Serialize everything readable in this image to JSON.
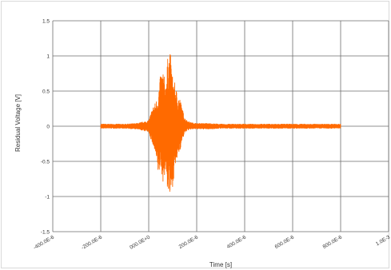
{
  "chart_data": {
    "type": "line",
    "title": "",
    "xlabel": "Time [s]",
    "ylabel": "Residual Voltage [V]",
    "xlim": [
      -0.0004,
      0.001
    ],
    "ylim": [
      -1.5,
      1.5
    ],
    "x_ticks": [
      -0.0004,
      -0.0002,
      0.0,
      0.0002,
      0.0004,
      0.0006,
      0.0008,
      0.001
    ],
    "x_tick_labels": [
      "-400.0E-6",
      "-200.0E-6",
      "000.0E+0",
      "200.0E-6",
      "400.0E-6",
      "600.0E-6",
      "800.0E-6",
      "1.0E-3"
    ],
    "y_ticks": [
      1.5,
      1,
      0.5,
      0,
      -0.5,
      -1,
      -1.5
    ],
    "y_tick_labels": [
      "1.5",
      "1",
      "0.5",
      "0",
      "-0.5",
      "-1",
      "-1.5"
    ],
    "grid": true,
    "series": [
      {
        "color": "#ff6a00",
        "x": [
          -0.0002,
          -0.00015,
          -0.0001,
          -5e-05,
          0.0,
          1e-05,
          2e-05,
          3e-05,
          4e-05,
          5e-05,
          6e-05,
          7e-05,
          8e-05,
          9e-05,
          0.0001,
          0.00011,
          0.00012,
          0.00013,
          0.00014,
          0.00015,
          0.00016,
          0.00017,
          0.00018,
          0.0002,
          0.00025,
          0.0003,
          0.0004,
          0.0005,
          0.0006,
          0.0007,
          0.0008
        ],
        "upper": [
          0.03,
          0.03,
          0.03,
          0.04,
          0.08,
          0.2,
          0.3,
          0.35,
          0.5,
          0.75,
          0.8,
          0.6,
          1.0,
          1.05,
          0.7,
          0.6,
          0.45,
          0.4,
          0.25,
          0.12,
          0.08,
          0.06,
          0.05,
          0.04,
          0.04,
          0.03,
          0.03,
          0.03,
          0.03,
          0.03,
          0.03
        ],
        "lower": [
          -0.03,
          -0.03,
          -0.03,
          -0.04,
          -0.08,
          -0.2,
          -0.3,
          -0.45,
          -0.7,
          -0.6,
          -0.8,
          -0.65,
          -0.95,
          -1.05,
          -0.85,
          -0.6,
          -0.45,
          -0.35,
          -0.2,
          -0.1,
          -0.06,
          -0.05,
          -0.04,
          -0.04,
          -0.04,
          -0.03,
          -0.03,
          -0.03,
          -0.03,
          -0.03,
          -0.03
        ]
      }
    ]
  }
}
